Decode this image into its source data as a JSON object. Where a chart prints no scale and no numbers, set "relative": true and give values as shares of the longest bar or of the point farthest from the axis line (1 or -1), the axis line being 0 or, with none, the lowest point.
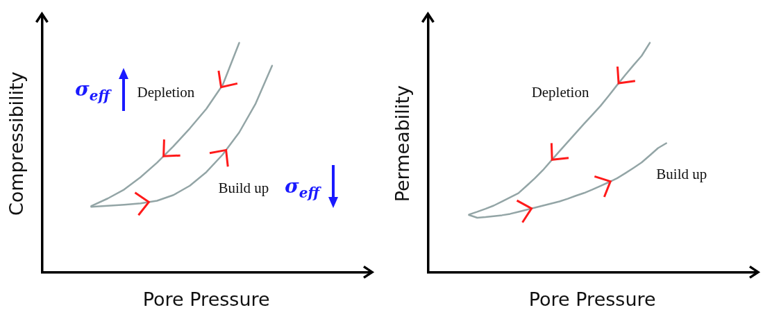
{
  "chart_data": [
    {
      "type": "line",
      "relative": true,
      "xlabel": "Pore Pressure",
      "ylabel": "Compressibility",
      "marker": "none",
      "line_style": "solid",
      "annotations": [
        "σ$_{eff}$",
        "σ$_{eff}$"
      ],
      "categories": [
        null,
        null,
        null,
        null,
        null,
        null,
        null,
        null,
        null,
        null,
        null,
        null,
        null,
        null,
        null,
        null,
        null,
        null,
        null,
        null,
        null
      ],
      "series": [
        {
          "name": "Depletion",
          "color": "#93a5a6",
          "values": [
            null,
            null,
            null,
            0.288,
            0.321,
            0.36,
            0.414,
            0.477,
            0.549,
            0.627,
            0.712,
            0.817,
            1,
            null,
            null,
            null,
            null,
            null,
            null,
            null,
            null
          ]
        },
        {
          "name": "Build up",
          "color": "#93a5a6",
          "values": [
            null,
            null,
            null,
            0.285,
            0.289,
            0.294,
            0.3,
            0.311,
            0.336,
            0.377,
            0.436,
            0.513,
            0.609,
            0.735,
            0.9,
            null,
            null,
            null,
            null,
            null,
            null
          ]
        }
      ]
    },
    {
      "type": "line",
      "relative": true,
      "xlabel": "Pore Pressure",
      "ylabel": "Permeability",
      "marker": "none",
      "line_style": "solid",
      "categories": [
        null,
        null,
        null,
        null,
        null,
        null,
        null,
        null,
        null,
        null,
        null,
        null,
        null,
        null,
        null,
        null,
        null,
        null,
        null,
        null,
        null,
        null,
        null,
        null,
        null,
        null,
        null,
        null,
        null,
        null,
        null,
        null,
        null,
        null,
        null,
        null,
        null,
        null,
        null,
        null,
        null
      ],
      "series": [
        {
          "name": "Depletion",
          "color": "#93a5a6",
          "values": [
            null,
            null,
            null,
            null,
            null,
            0.251,
            0.263,
            0.276,
            0.29,
            0.308,
            0.326,
            0.344,
            0.376,
            0.409,
            0.445,
            0.486,
            0.527,
            0.567,
            0.607,
            0.647,
            0.686,
            0.725,
            0.769,
            0.815,
            0.859,
            0.902,
            0.943,
            1,
            null,
            null,
            null,
            null,
            null,
            null,
            null,
            null,
            null,
            null,
            null,
            null,
            null
          ]
        },
        {
          "name": "Build up",
          "color": "#93a5a6",
          "values": [
            null,
            null,
            null,
            null,
            null,
            0.249,
            0.237,
            0.24,
            0.244,
            0.248,
            0.254,
            0.263,
            0.272,
            0.281,
            0.29,
            0.299,
            0.308,
            0.32,
            0.333,
            0.345,
            0.36,
            0.376,
            0.392,
            0.409,
            0.431,
            0.454,
            0.478,
            0.509,
            0.541,
            0.562,
            null,
            null,
            null,
            null,
            null,
            null,
            null,
            null,
            null,
            null,
            null
          ]
        }
      ]
    }
  ]
}
